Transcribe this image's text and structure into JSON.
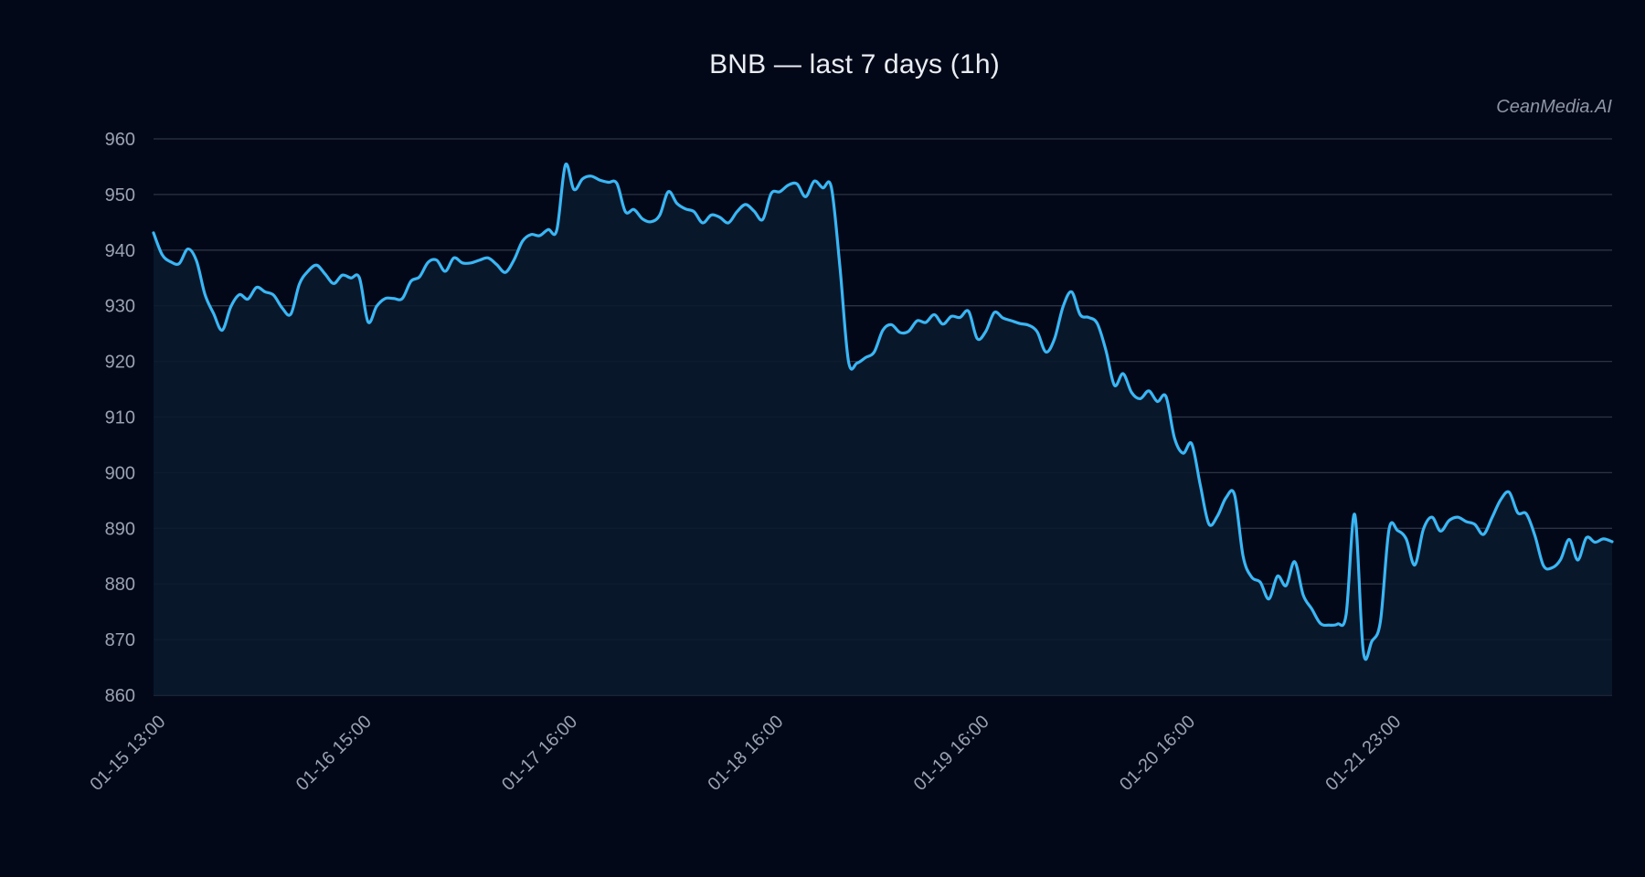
{
  "watermark": "CeanMedia.AI",
  "colors": {
    "background": "#030818",
    "line": "#3ab6f4",
    "area": "#0a1a2e",
    "grid": "#2b3444",
    "text": "#9aa3b2"
  },
  "chart_data": {
    "type": "area",
    "title": "BNB — last 7 days (1h)",
    "xlabel": "",
    "ylabel": "",
    "ylim": [
      860,
      960
    ],
    "y_ticks": [
      960,
      950,
      940,
      930,
      920,
      910,
      900,
      890,
      880,
      870,
      860
    ],
    "x_tick_labels": [
      "01-15 13:00",
      "01-16 15:00",
      "01-17 16:00",
      "01-18 16:00",
      "01-19 16:00",
      "01-20 16:00",
      "01-21 23:00"
    ],
    "x_tick_index": [
      0,
      24,
      48,
      72,
      96,
      120,
      144
    ],
    "grid": true,
    "series": [
      {
        "values": [
          943.1,
          939.2,
          937.9,
          937.6,
          940.2,
          938.1,
          932.0,
          928.6,
          925.6,
          929.8,
          932.0,
          931.2,
          933.3,
          932.5,
          931.9,
          929.6,
          928.5,
          933.9,
          936.2,
          937.3,
          935.7,
          934.0,
          935.5,
          935.0,
          935.0,
          927.1,
          929.9,
          931.3,
          931.3,
          931.3,
          934.4,
          935.2,
          937.8,
          938.2,
          936.2,
          938.6,
          937.7,
          937.7,
          938.2,
          938.6,
          937.4,
          936.0,
          938.2,
          941.6,
          942.8,
          942.6,
          943.7,
          943.6,
          955.3,
          950.9,
          952.8,
          953.3,
          952.6,
          952.2,
          952.0,
          946.9,
          947.3,
          945.6,
          945.1,
          946.3,
          950.5,
          948.4,
          947.4,
          946.9,
          944.9,
          946.3,
          945.9,
          944.9,
          946.9,
          948.2,
          947.0,
          945.5,
          950.2,
          950.5,
          951.7,
          951.9,
          949.6,
          952.4,
          951.2,
          951.3,
          937.0,
          920.0,
          919.7,
          920.7,
          921.7,
          925.6,
          926.6,
          925.2,
          925.4,
          927.3,
          927.0,
          928.4,
          926.7,
          928.1,
          927.9,
          929.0,
          924.1,
          925.4,
          928.8,
          927.8,
          927.3,
          926.8,
          926.5,
          925.3,
          921.7,
          924.0,
          929.8,
          932.5,
          928.4,
          927.9,
          926.8,
          922.0,
          915.7,
          917.8,
          914.4,
          913.3,
          914.7,
          912.8,
          913.7,
          906.2,
          903.5,
          905.2,
          897.8,
          890.8,
          892.2,
          895.5,
          896.0,
          884.9,
          881.2,
          880.3,
          877.3,
          881.4,
          879.7,
          884.0,
          878.0,
          875.5,
          872.9,
          872.6,
          872.8,
          874.5,
          892.5,
          867.9,
          869.7,
          873.3,
          889.8,
          889.6,
          888.1,
          883.4,
          889.8,
          892.0,
          889.5,
          891.4,
          892.0,
          891.2,
          890.7,
          888.9,
          891.9,
          895.1,
          896.5,
          892.8,
          892.6,
          888.7,
          883.3,
          882.9,
          884.4,
          888.0,
          884.3,
          888.3,
          887.5,
          888.1,
          887.6
        ]
      }
    ]
  }
}
